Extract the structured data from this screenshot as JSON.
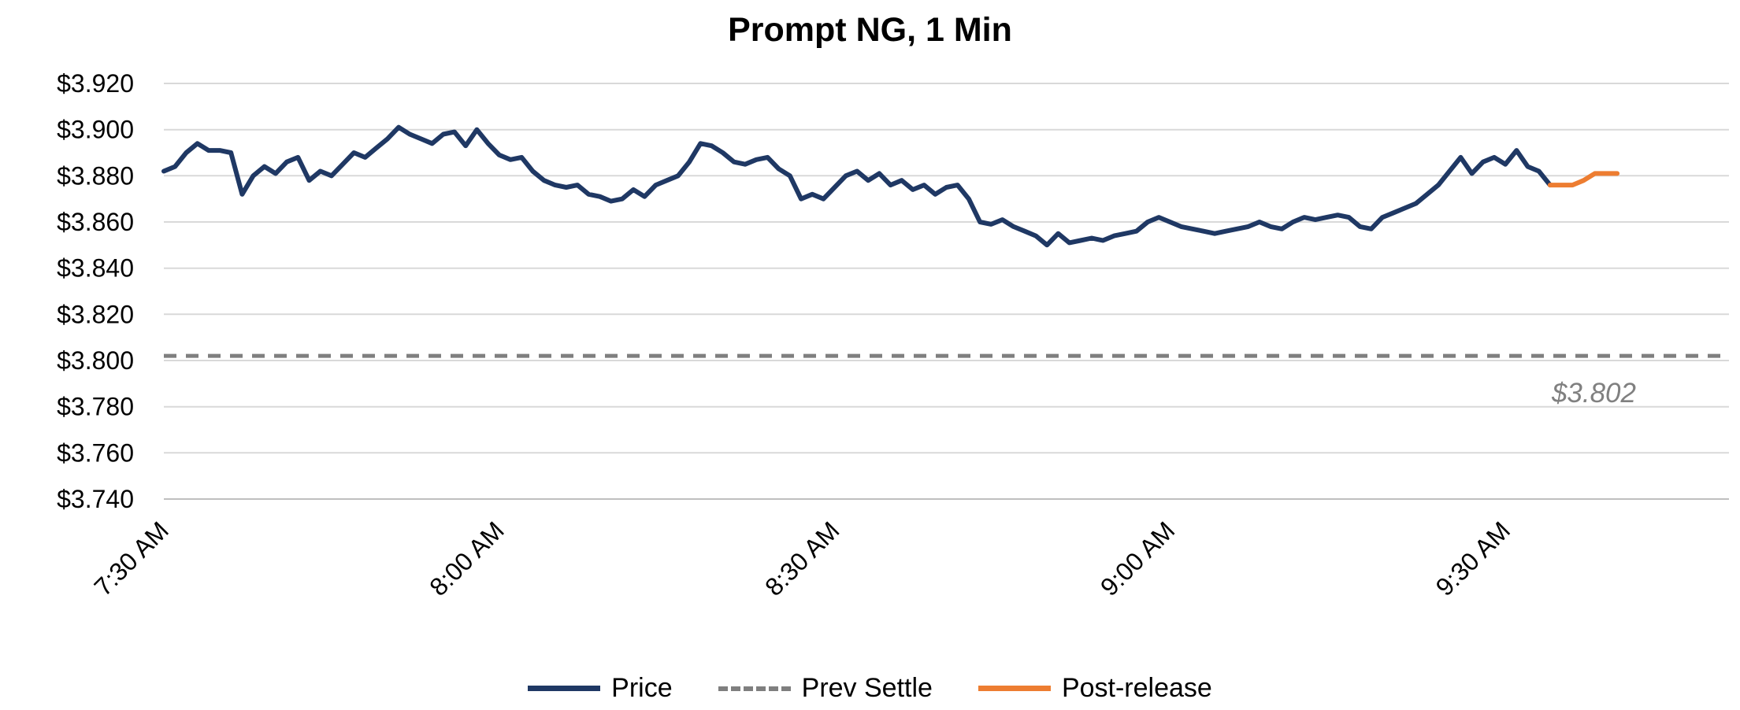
{
  "chart_data": {
    "type": "line",
    "title": "Prompt NG, 1 Min",
    "grid": {
      "color": "#D9D9D9",
      "horizontal": true,
      "vertical": false
    },
    "y_axis": {
      "min": 3.74,
      "max": 3.92,
      "step": 0.02,
      "tick_values": [
        3.74,
        3.76,
        3.78,
        3.8,
        3.82,
        3.84,
        3.86,
        3.88,
        3.9,
        3.92
      ],
      "tick_labels": [
        "$3.740",
        "$3.760",
        "$3.780",
        "$3.800",
        "$3.820",
        "$3.840",
        "$3.860",
        "$3.880",
        "$3.900",
        "$3.920"
      ]
    },
    "x_axis": {
      "unit": "minutes since 7:30 AM",
      "interval_minutes": 1,
      "total_minutes": 140,
      "ticks": [
        {
          "minute": 0,
          "label": "7:30 AM"
        },
        {
          "minute": 30,
          "label": "8:00 AM"
        },
        {
          "minute": 60,
          "label": "8:30 AM"
        },
        {
          "minute": 90,
          "label": "9:00 AM"
        },
        {
          "minute": 120,
          "label": "9:30 AM"
        }
      ]
    },
    "series": [
      {
        "name": "Price",
        "type": "line",
        "color": "#1F3864",
        "width": 6,
        "start_minute": 0,
        "interval_minutes": 1,
        "values": [
          3.882,
          3.884,
          3.89,
          3.894,
          3.891,
          3.891,
          3.89,
          3.872,
          3.88,
          3.884,
          3.881,
          3.886,
          3.888,
          3.878,
          3.882,
          3.88,
          3.885,
          3.89,
          3.888,
          3.892,
          3.896,
          3.901,
          3.898,
          3.896,
          3.894,
          3.898,
          3.899,
          3.893,
          3.9,
          3.894,
          3.889,
          3.887,
          3.888,
          3.882,
          3.878,
          3.876,
          3.875,
          3.876,
          3.872,
          3.871,
          3.869,
          3.87,
          3.874,
          3.871,
          3.876,
          3.878,
          3.88,
          3.886,
          3.894,
          3.893,
          3.89,
          3.886,
          3.885,
          3.887,
          3.888,
          3.883,
          3.88,
          3.87,
          3.872,
          3.87,
          3.875,
          3.88,
          3.882,
          3.878,
          3.881,
          3.876,
          3.878,
          3.874,
          3.876,
          3.872,
          3.875,
          3.876,
          3.87,
          3.86,
          3.859,
          3.861,
          3.858,
          3.856,
          3.854,
          3.85,
          3.855,
          3.851,
          3.852,
          3.853,
          3.852,
          3.854,
          3.855,
          3.856,
          3.86,
          3.862,
          3.86,
          3.858,
          3.857,
          3.856,
          3.855,
          3.856,
          3.857,
          3.858,
          3.86,
          3.858,
          3.857,
          3.86,
          3.862,
          3.861,
          3.862,
          3.863,
          3.862,
          3.858,
          3.857,
          3.862,
          3.864,
          3.866,
          3.868,
          3.872,
          3.876,
          3.882,
          3.888,
          3.881,
          3.886,
          3.888,
          3.885,
          3.891,
          3.884,
          3.882,
          3.876
        ]
      },
      {
        "name": "Post-release",
        "type": "line",
        "color": "#ED7D31",
        "width": 6,
        "start_minute": 124,
        "interval_minutes": 1,
        "values": [
          3.876,
          3.876,
          3.876,
          3.878,
          3.881,
          3.881,
          3.881
        ]
      },
      {
        "name": "Prev Settle",
        "type": "hline",
        "color": "#7F7F7F",
        "dash": true,
        "value": 3.802
      }
    ],
    "annotation": {
      "text": "$3.802",
      "color": "#808080"
    },
    "legend": [
      {
        "label": "Price",
        "color": "#1F3864",
        "style": "solid"
      },
      {
        "label": "Prev Settle",
        "color": "#7F7F7F",
        "style": "dashed"
      },
      {
        "label": "Post-release",
        "color": "#ED7D31",
        "style": "solid"
      }
    ]
  }
}
